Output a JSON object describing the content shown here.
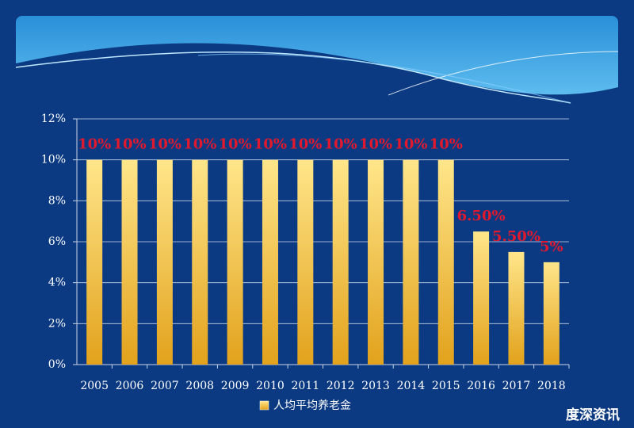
{
  "chart_data": {
    "type": "bar",
    "categories": [
      "2005",
      "2006",
      "2007",
      "2008",
      "2009",
      "2010",
      "2011",
      "2012",
      "2013",
      "2014",
      "2015",
      "2016",
      "2017",
      "2018"
    ],
    "series": [
      {
        "name": "人均平均养老金",
        "color": "#f2b531",
        "values": [
          10,
          10,
          10,
          10,
          10,
          10,
          10,
          10,
          10,
          10,
          10,
          6.5,
          5.5,
          5
        ],
        "value_labels": [
          "10%",
          "10%",
          "10%",
          "10%",
          "10%",
          "10%",
          "10%",
          "10%",
          "10%",
          "10%",
          "10%",
          "6.50%",
          "5.50%",
          "5%"
        ]
      }
    ],
    "ylim": [
      0,
      12
    ],
    "yticks": [
      {
        "value": 0,
        "label": "0%"
      },
      {
        "value": 2,
        "label": "2%"
      },
      {
        "value": 4,
        "label": "4%"
      },
      {
        "value": 6,
        "label": "6%"
      },
      {
        "value": 8,
        "label": "8%"
      },
      {
        "value": 10,
        "label": "10%"
      },
      {
        "value": 12,
        "label": "12%"
      }
    ],
    "grid": true,
    "legend": "bottom",
    "watermark": "度深资讯"
  }
}
